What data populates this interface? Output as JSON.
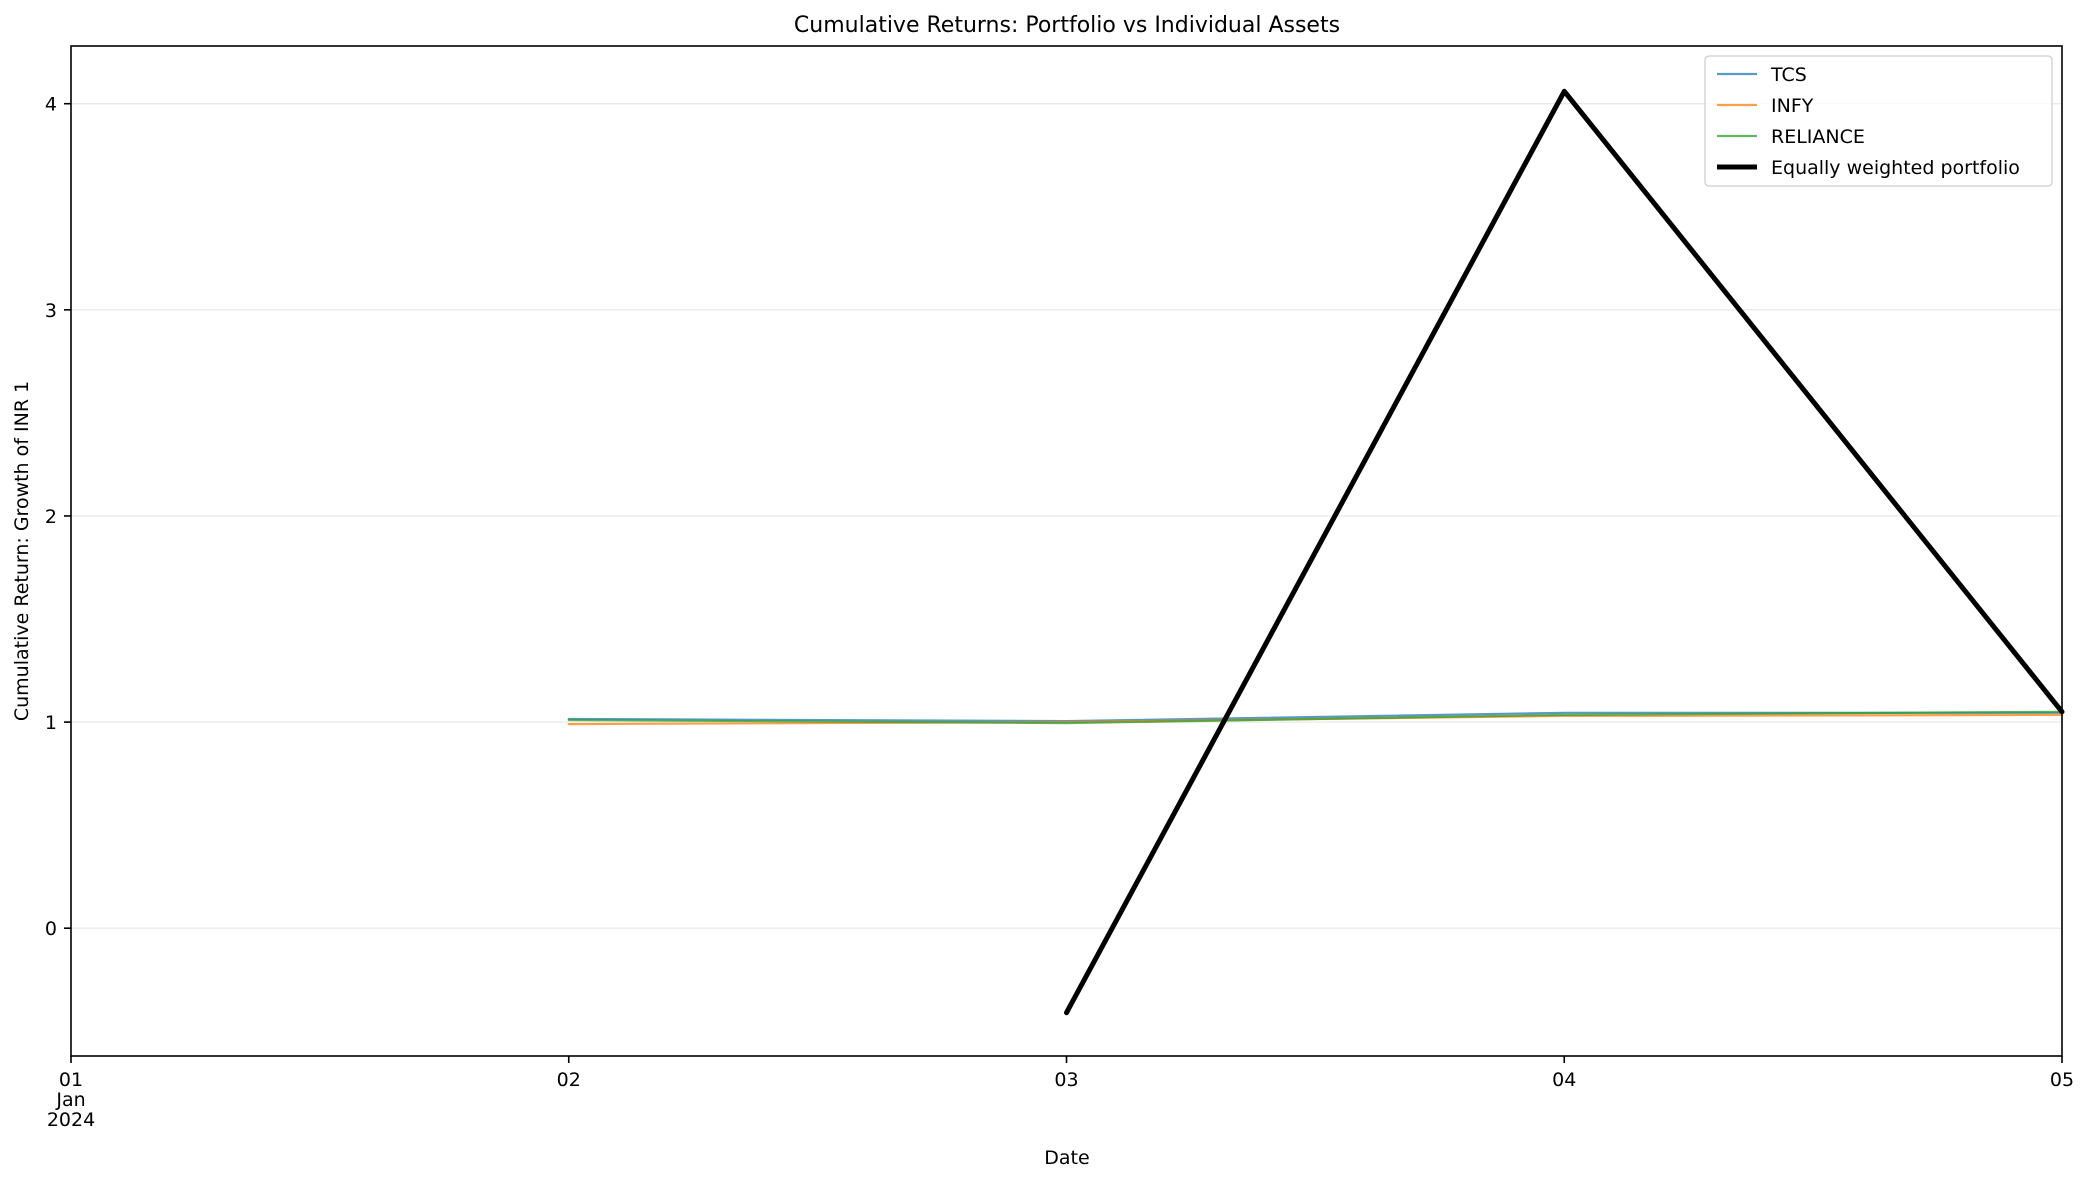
{
  "chart_data": {
    "type": "line",
    "title": "Cumulative Returns: Portfolio vs Individual Assets",
    "xlabel": "Date",
    "ylabel": "Cumulative Return: Growth of INR 1",
    "x": [
      "2024-01-01",
      "2024-01-02",
      "2024-01-03",
      "2024-01-04",
      "2024-01-05"
    ],
    "x_ticks": [
      {
        "x": "2024-01-01",
        "lines": [
          "01",
          "Jan",
          "2024"
        ]
      },
      {
        "x": "2024-01-02",
        "lines": [
          "02"
        ]
      },
      {
        "x": "2024-01-03",
        "lines": [
          "03"
        ]
      },
      {
        "x": "2024-01-04",
        "lines": [
          "04"
        ]
      },
      {
        "x": "2024-01-05",
        "lines": [
          "05"
        ]
      }
    ],
    "y_ticks": [
      0,
      1,
      2,
      3,
      4
    ],
    "ylim": [
      -0.62,
      4.28
    ],
    "xlim": [
      "2024-01-01",
      "2024-01-05"
    ],
    "grid": "horizontal",
    "legend_position": "top-right",
    "series": [
      {
        "name": "TCS",
        "color": "#1f77b4",
        "width": 2.2,
        "opacity": 0.75,
        "points": [
          [
            "2024-01-02",
            1.015
          ],
          [
            "2024-01-03",
            1.005
          ],
          [
            "2024-01-04",
            1.045
          ],
          [
            "2024-01-05",
            1.045
          ]
        ]
      },
      {
        "name": "INFY",
        "color": "#ff7f0e",
        "width": 2.2,
        "opacity": 0.75,
        "points": [
          [
            "2024-01-02",
            0.99
          ],
          [
            "2024-01-03",
            1.0
          ],
          [
            "2024-01-04",
            1.03
          ],
          [
            "2024-01-05",
            1.035
          ]
        ]
      },
      {
        "name": "RELIANCE",
        "color": "#2ca02c",
        "width": 2.2,
        "opacity": 0.75,
        "points": [
          [
            "2024-01-02",
            1.01
          ],
          [
            "2024-01-03",
            0.995
          ],
          [
            "2024-01-04",
            1.035
          ],
          [
            "2024-01-05",
            1.05
          ]
        ]
      },
      {
        "name": "Equally weighted portfolio",
        "color": "#000000",
        "width": 5,
        "opacity": 1,
        "points": [
          [
            "2024-01-03",
            -0.41
          ],
          [
            "2024-01-04",
            4.06
          ],
          [
            "2024-01-05",
            1.05
          ]
        ]
      }
    ]
  }
}
